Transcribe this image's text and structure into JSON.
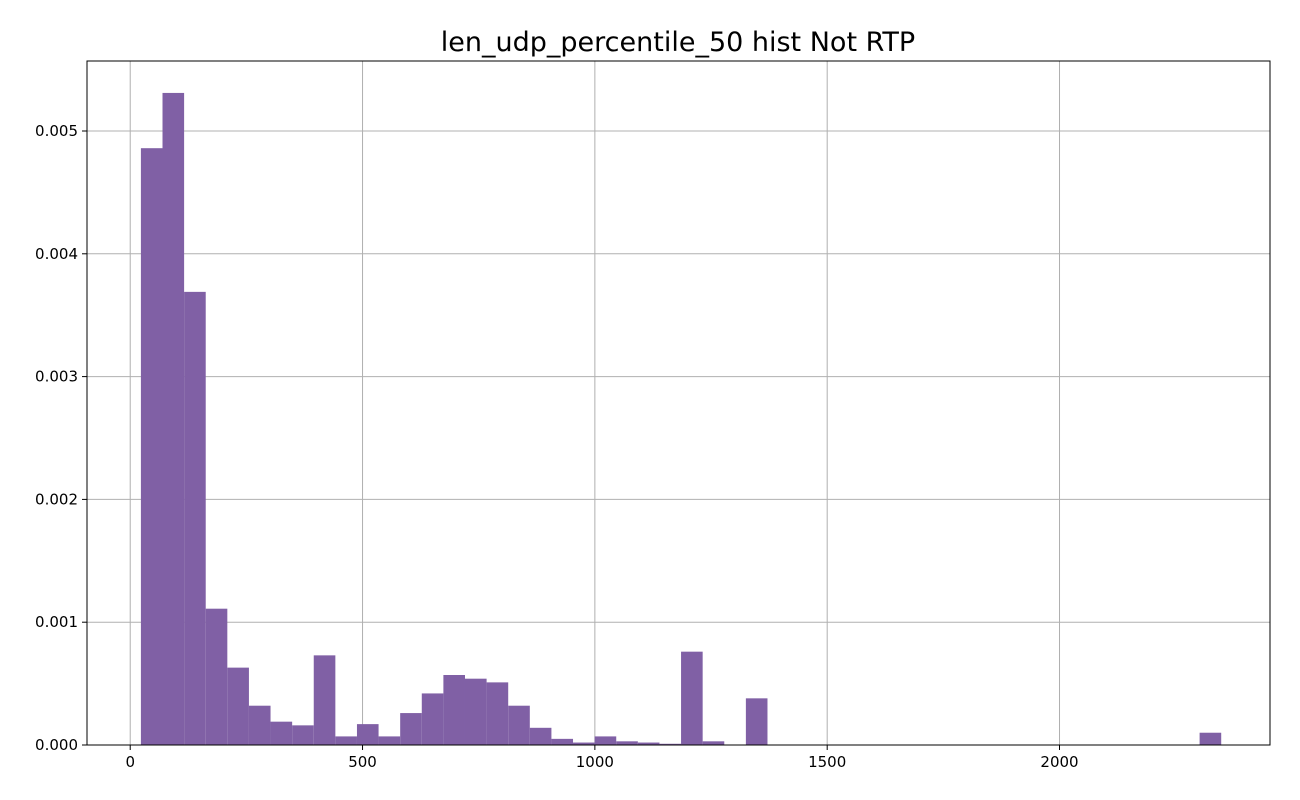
{
  "chart_data": {
    "type": "bar",
    "title": "len_udp_percentile_50 hist Not RTP",
    "xlabel": "",
    "ylabel": "",
    "xlim": [
      -93,
      2453
    ],
    "ylim": [
      0,
      0.00557
    ],
    "grid": true,
    "bar_color": "#8060a5",
    "grid_color": "#b0b0b0",
    "xticks": [
      0,
      500,
      1000,
      1500,
      2000
    ],
    "xtick_labels": [
      "0",
      "500",
      "1000",
      "1500",
      "2000"
    ],
    "yticks": [
      0.0,
      0.001,
      0.002,
      0.003,
      0.004,
      0.005
    ],
    "ytick_labels": [
      "0.000",
      "0.001",
      "0.002",
      "0.003",
      "0.004",
      "0.005"
    ],
    "bin_start": 23,
    "bin_width": 46.5,
    "bin_values": [
      0.00486,
      0.00531,
      0.00369,
      0.00111,
      0.00063,
      0.00032,
      0.00019,
      0.00016,
      0.00073,
      7e-05,
      0.00017,
      7e-05,
      0.00026,
      0.00042,
      0.00057,
      0.00054,
      0.00051,
      0.00032,
      0.00014,
      5e-05,
      2e-05,
      7e-05,
      3e-05,
      2e-05,
      1e-05,
      0.00076,
      3e-05,
      0,
      0.00038,
      0,
      0,
      0,
      0,
      0,
      0,
      0,
      0,
      0,
      0,
      0,
      0,
      0,
      0,
      0,
      0,
      0,
      0,
      0,
      0,
      0.0001
    ]
  }
}
